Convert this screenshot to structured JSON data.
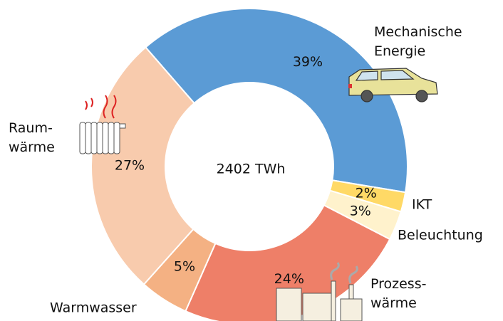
{
  "chart_data": {
    "type": "donut",
    "center_label": "2402 TWh",
    "categories": [
      "Mechanische\nEnergie",
      "IKT",
      "Beleuchtung",
      "Prozess-\nwärme",
      "Warmwasser",
      "Raum-\nwärme"
    ],
    "values": [
      39,
      2,
      3,
      24,
      5,
      27
    ],
    "value_labels": [
      "39%",
      "2%",
      "3%",
      "24%",
      "5%",
      "27%"
    ],
    "colors": [
      "#5b9bd5",
      "#ffd966",
      "#fff2cc",
      "#ee7f68",
      "#f4b183",
      "#f8cbad"
    ]
  }
}
